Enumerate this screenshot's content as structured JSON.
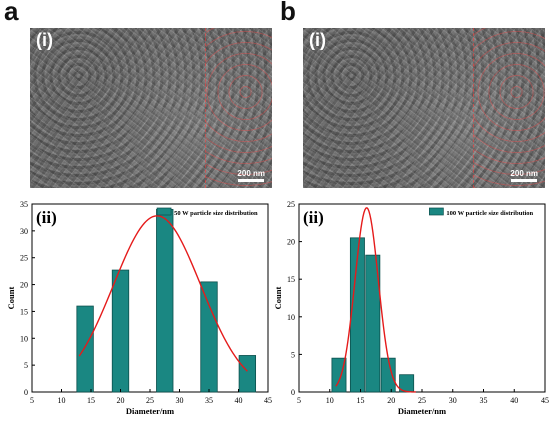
{
  "panels": {
    "a": {
      "letter": "a",
      "sem_label": "(i)",
      "scale_text": "200 nm"
    },
    "b": {
      "letter": "b",
      "sem_label": "(i)",
      "scale_text": "200 nm"
    }
  },
  "colors": {
    "bar": "#1a8782",
    "bar_edge": "#0c4f4c",
    "fit": "#e51b1b",
    "sem_dash": "#ff4040"
  },
  "chart_data": [
    {
      "type": "bar",
      "panel_label": "(ii)",
      "legend": "50 W particle size distribution",
      "xlabel": "Diameter/nm",
      "ylabel": "Count",
      "xlim": [
        5,
        45
      ],
      "ylim": [
        0,
        35
      ],
      "xticks": [
        5,
        10,
        15,
        20,
        25,
        30,
        35,
        40,
        45
      ],
      "yticks": [
        0,
        5,
        10,
        15,
        20,
        25,
        30,
        35
      ],
      "bin_width": 2.8,
      "x": [
        14,
        20,
        27.5,
        35,
        41.5
      ],
      "values": [
        16,
        22.7,
        34,
        20.5,
        6.8
      ],
      "fit": {
        "type": "gaussian",
        "x_range": [
          13,
          41.5
        ],
        "center": 26.2,
        "sigma": 7.4,
        "amplitude": 32.8
      }
    },
    {
      "type": "bar",
      "panel_label": "(ii)",
      "legend": "100 W particle size distribution",
      "xlabel": "Diameter/nm",
      "ylabel": "Count",
      "xlim": [
        5,
        45
      ],
      "ylim": [
        0,
        25
      ],
      "xticks": [
        5,
        10,
        15,
        20,
        25,
        30,
        35,
        40,
        45
      ],
      "yticks": [
        0,
        5,
        10,
        15,
        20,
        25
      ],
      "bin_width": 2.3,
      "x": [
        11.5,
        14.5,
        17,
        19.5,
        22.5
      ],
      "values": [
        4.5,
        20.5,
        18.2,
        4.5,
        2.3
      ],
      "fit": {
        "type": "gaussian",
        "x_range": [
          11,
          24
        ],
        "center": 16,
        "sigma": 1.9,
        "amplitude": 24.5
      }
    }
  ]
}
